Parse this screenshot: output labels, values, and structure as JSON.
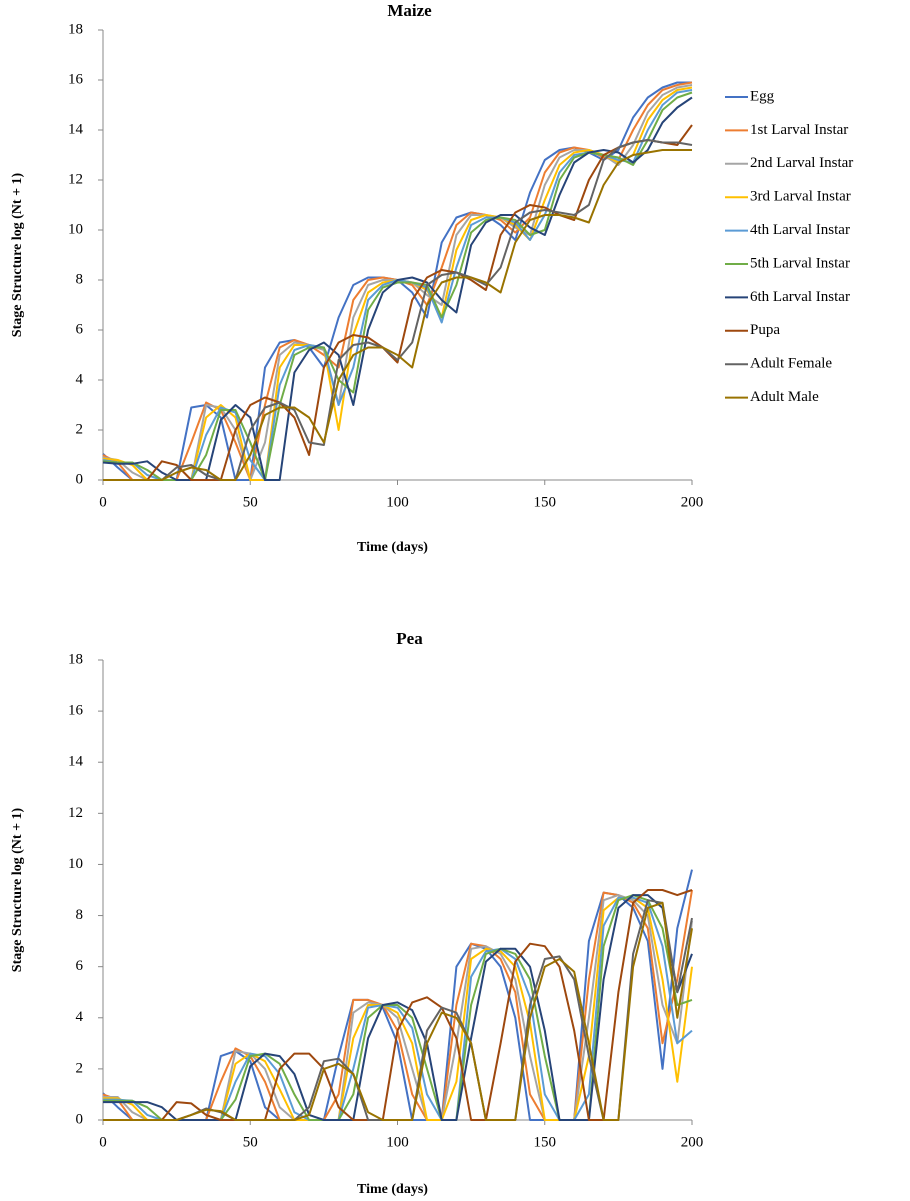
{
  "chart_data": [
    {
      "type": "line",
      "title": "Maize",
      "xlabel": "Time (days)",
      "ylabel": "Stage Structure log (Nt + 1)",
      "xlim": [
        0,
        200
      ],
      "xticks": [
        0,
        50,
        100,
        150,
        200
      ],
      "ylim": [
        0,
        18
      ],
      "yticks": [
        0,
        2,
        4,
        6,
        8,
        10,
        12,
        14,
        16,
        18
      ],
      "legend": "right",
      "x": [
        0,
        5,
        10,
        15,
        20,
        25,
        30,
        35,
        40,
        45,
        50,
        55,
        60,
        65,
        70,
        75,
        80,
        85,
        90,
        95,
        100,
        105,
        110,
        115,
        120,
        125,
        130,
        135,
        140,
        145,
        150,
        155,
        160,
        165,
        170,
        175,
        180,
        185,
        190,
        195,
        200
      ],
      "series": [
        {
          "name": "Egg",
          "color": "#4472c4",
          "values": [
            1.05,
            0.5,
            0,
            0,
            0,
            0,
            2.9,
            3.0,
            2.5,
            0,
            0,
            4.5,
            5.5,
            5.6,
            5.3,
            4.5,
            6.5,
            7.8,
            8.1,
            8.1,
            8.0,
            7.5,
            6.5,
            9.5,
            10.5,
            10.7,
            10.6,
            10.2,
            9.6,
            11.5,
            12.8,
            13.2,
            13.3,
            13.1,
            12.8,
            13.2,
            14.5,
            15.3,
            15.7,
            15.9,
            15.9
          ]
        },
        {
          "name": "1st Larval Instar",
          "color": "#ed7d31",
          "values": [
            1.0,
            0.7,
            0,
            0,
            0,
            0,
            1.5,
            3.1,
            2.8,
            1.5,
            0,
            3.0,
            5.3,
            5.6,
            5.4,
            5.0,
            4.5,
            7.2,
            8.0,
            8.1,
            8.0,
            7.8,
            7.0,
            8.5,
            10.2,
            10.7,
            10.6,
            10.4,
            9.9,
            10.5,
            12.3,
            13.1,
            13.3,
            13.2,
            12.9,
            12.8,
            14.0,
            15.0,
            15.6,
            15.8,
            15.9
          ]
        },
        {
          "name": "2nd Larval Instar",
          "color": "#a5a5a5",
          "values": [
            0.9,
            0.8,
            0.3,
            0,
            0,
            0,
            0,
            3.0,
            2.9,
            2.0,
            0,
            1.5,
            5.0,
            5.5,
            5.4,
            5.2,
            3.0,
            6.5,
            7.8,
            8.0,
            8.0,
            7.9,
            7.4,
            7.0,
            9.8,
            10.6,
            10.6,
            10.5,
            10.1,
            9.8,
            11.8,
            12.9,
            13.2,
            13.2,
            13.0,
            12.6,
            13.4,
            14.7,
            15.4,
            15.7,
            15.8
          ]
        },
        {
          "name": "3rd Larval Instar",
          "color": "#ffc000",
          "values": [
            0.85,
            0.8,
            0.6,
            0,
            0,
            0,
            0,
            2.5,
            3.0,
            2.5,
            0,
            0,
            4.5,
            5.4,
            5.4,
            5.3,
            2.0,
            5.8,
            7.5,
            7.9,
            8.0,
            7.9,
            7.6,
            6.5,
            9.2,
            10.4,
            10.6,
            10.5,
            10.2,
            9.6,
            11.2,
            12.6,
            13.1,
            13.2,
            13.0,
            12.7,
            13.0,
            14.4,
            15.2,
            15.6,
            15.7
          ]
        },
        {
          "name": "4th Larval Instar",
          "color": "#5b9bd5",
          "values": [
            0.8,
            0.7,
            0.7,
            0.2,
            0,
            0,
            0,
            1.8,
            2.9,
            2.7,
            0.8,
            0,
            3.8,
            5.2,
            5.4,
            5.3,
            3.0,
            4.5,
            7.2,
            7.8,
            8.0,
            7.9,
            7.7,
            6.3,
            8.5,
            10.2,
            10.5,
            10.5,
            10.3,
            9.6,
            10.6,
            12.3,
            13.0,
            13.1,
            13.0,
            12.8,
            12.7,
            14.0,
            15.0,
            15.5,
            15.6
          ]
        },
        {
          "name": "5th Larval Instar",
          "color": "#70ad47",
          "values": [
            0.75,
            0.7,
            0.7,
            0.4,
            0,
            0,
            0,
            1.0,
            2.8,
            2.8,
            1.5,
            0,
            3.0,
            5.0,
            5.3,
            5.3,
            4.0,
            3.5,
            6.8,
            7.7,
            7.9,
            7.9,
            7.8,
            6.5,
            7.8,
            9.9,
            10.4,
            10.5,
            10.4,
            9.8,
            10.0,
            12.0,
            12.9,
            13.1,
            13.0,
            12.9,
            12.6,
            13.6,
            14.8,
            15.3,
            15.5
          ]
        },
        {
          "name": "6th Larval Instar",
          "color": "#264478",
          "values": [
            0.7,
            0.65,
            0.65,
            0.75,
            0.3,
            0,
            0,
            0,
            2.4,
            3.0,
            2.5,
            0,
            0,
            4.3,
            5.2,
            5.5,
            5.0,
            3.0,
            6.0,
            7.5,
            8.0,
            8.1,
            7.9,
            7.2,
            6.7,
            9.4,
            10.3,
            10.6,
            10.6,
            10.1,
            9.8,
            11.4,
            12.7,
            13.1,
            13.2,
            13.1,
            12.7,
            13.2,
            14.3,
            14.9,
            15.3
          ]
        },
        {
          "name": "Pupa",
          "color": "#9e480e",
          "values": [
            0,
            0,
            0,
            0,
            0.75,
            0.6,
            0,
            0,
            0,
            2.0,
            3.0,
            3.3,
            3.1,
            2.5,
            1.0,
            4.5,
            5.5,
            5.8,
            5.7,
            5.3,
            4.7,
            7.2,
            8.1,
            8.4,
            8.3,
            8.0,
            7.6,
            9.8,
            10.7,
            11.0,
            10.9,
            10.6,
            10.4,
            12.0,
            13.0,
            13.3,
            13.5,
            13.6,
            13.5,
            13.4,
            14.2
          ]
        },
        {
          "name": "Adult Female",
          "color": "#636363",
          "values": [
            0,
            0,
            0,
            0,
            0,
            0.5,
            0.6,
            0.2,
            0,
            0,
            2.0,
            2.9,
            3.1,
            2.8,
            1.5,
            1.4,
            4.8,
            5.4,
            5.5,
            5.3,
            4.8,
            5.5,
            7.8,
            8.2,
            8.3,
            8.1,
            7.8,
            8.5,
            10.3,
            10.7,
            10.8,
            10.7,
            10.6,
            11.0,
            12.8,
            13.3,
            13.5,
            13.6,
            13.5,
            13.5,
            13.4
          ]
        },
        {
          "name": "Adult Male",
          "color": "#997300",
          "values": [
            0,
            0,
            0,
            0,
            0,
            0.3,
            0.5,
            0.4,
            0,
            0,
            1.0,
            2.6,
            2.9,
            2.9,
            2.5,
            1.5,
            4.0,
            5.0,
            5.3,
            5.3,
            5.0,
            4.5,
            7.0,
            7.9,
            8.1,
            8.1,
            7.9,
            7.5,
            9.5,
            10.4,
            10.6,
            10.6,
            10.5,
            10.3,
            11.8,
            12.7,
            13.0,
            13.1,
            13.2,
            13.2,
            13.2
          ]
        }
      ]
    },
    {
      "type": "line",
      "title": "Pea",
      "xlabel": "Time (days)",
      "ylabel": "Stage Structure log  (Nt + 1)",
      "xlim": [
        0,
        200
      ],
      "xticks": [
        0,
        50,
        100,
        150,
        200
      ],
      "ylim": [
        0,
        18
      ],
      "yticks": [
        0,
        2,
        4,
        6,
        8,
        10,
        12,
        14,
        16,
        18
      ],
      "x": [
        0,
        5,
        10,
        15,
        20,
        25,
        30,
        35,
        40,
        45,
        50,
        55,
        60,
        65,
        70,
        75,
        80,
        85,
        90,
        95,
        100,
        105,
        110,
        115,
        120,
        125,
        130,
        135,
        140,
        145,
        150,
        155,
        160,
        165,
        170,
        175,
        180,
        185,
        190,
        195,
        200
      ],
      "series": [
        {
          "color": "#4472c4",
          "values": [
            1.05,
            0.5,
            0,
            0,
            0,
            0,
            0,
            0,
            2.5,
            2.7,
            2.3,
            0.5,
            0,
            0,
            0,
            0,
            2.5,
            4.7,
            4.7,
            4.4,
            3.0,
            0,
            0,
            0,
            6.0,
            6.9,
            6.7,
            6.0,
            4.0,
            0,
            0,
            0,
            0,
            7.0,
            8.9,
            8.8,
            8.3,
            7.0,
            2.0,
            7.5,
            9.8
          ]
        },
        {
          "color": "#ed7d31",
          "values": [
            1.0,
            0.8,
            0,
            0,
            0,
            0,
            0,
            0,
            1.5,
            2.8,
            2.5,
            1.5,
            0,
            0,
            0,
            0,
            1.0,
            4.7,
            4.7,
            4.5,
            3.5,
            1.0,
            0,
            0,
            4.5,
            6.9,
            6.8,
            6.3,
            5.0,
            1.0,
            0,
            0,
            0,
            5.5,
            8.9,
            8.8,
            8.5,
            7.5,
            3.0,
            5.5,
            9.0
          ]
        },
        {
          "color": "#a5a5a5",
          "values": [
            0.9,
            0.9,
            0.3,
            0,
            0,
            0,
            0,
            0,
            0,
            2.7,
            2.6,
            2.0,
            0.5,
            0,
            0,
            0,
            0,
            4.2,
            4.6,
            4.5,
            4.0,
            2.0,
            0,
            0,
            3.0,
            6.7,
            6.8,
            6.5,
            5.5,
            2.5,
            0,
            0,
            0,
            4.0,
            8.6,
            8.8,
            8.6,
            8.0,
            4.5,
            3.0,
            7.8
          ]
        },
        {
          "color": "#ffc000",
          "values": [
            0.85,
            0.85,
            0.6,
            0,
            0,
            0,
            0,
            0,
            0,
            2.2,
            2.6,
            2.3,
            1.2,
            0,
            0,
            0,
            0,
            3.2,
            4.5,
            4.5,
            4.2,
            3.0,
            0,
            0,
            1.5,
            6.3,
            6.7,
            6.6,
            6.0,
            3.8,
            0,
            0,
            0,
            2.5,
            8.2,
            8.7,
            8.7,
            8.3,
            5.5,
            1.5,
            6.0
          ]
        },
        {
          "color": "#5b9bd5",
          "values": [
            0.8,
            0.8,
            0.75,
            0.2,
            0,
            0,
            0,
            0,
            0,
            1.5,
            2.6,
            2.5,
            1.8,
            0.3,
            0,
            0,
            0,
            2.0,
            4.4,
            4.5,
            4.4,
            3.6,
            1.0,
            0,
            0,
            5.6,
            6.6,
            6.7,
            6.3,
            4.8,
            1.0,
            0,
            0,
            1.0,
            7.6,
            8.7,
            8.7,
            8.5,
            6.8,
            3.0,
            3.5
          ]
        },
        {
          "color": "#70ad47",
          "values": [
            0.75,
            0.75,
            0.75,
            0.5,
            0,
            0,
            0,
            0,
            0,
            0.8,
            2.5,
            2.6,
            2.2,
            1.0,
            0,
            0,
            0,
            1.0,
            4.0,
            4.5,
            4.5,
            4.0,
            2.0,
            0,
            0,
            4.5,
            6.5,
            6.7,
            6.5,
            5.5,
            2.5,
            0,
            0,
            0,
            6.8,
            8.6,
            8.8,
            8.6,
            7.5,
            4.5,
            4.7
          ]
        },
        {
          "color": "#264478",
          "values": [
            0.7,
            0.7,
            0.7,
            0.7,
            0.5,
            0,
            0,
            0,
            0,
            0,
            2.1,
            2.6,
            2.5,
            1.8,
            0.2,
            0,
            0,
            0,
            3.2,
            4.5,
            4.6,
            4.3,
            3.0,
            0,
            0,
            3.2,
            6.2,
            6.7,
            6.7,
            6.0,
            3.5,
            0,
            0,
            0,
            5.5,
            8.3,
            8.8,
            8.8,
            8.3,
            5.0,
            6.5
          ]
        },
        {
          "color": "#9e480e",
          "values": [
            0,
            0,
            0,
            0,
            0,
            0.7,
            0.65,
            0.2,
            0,
            0,
            0,
            0,
            2.0,
            2.6,
            2.6,
            2.0,
            0.5,
            0,
            0,
            0,
            3.5,
            4.6,
            4.8,
            4.4,
            3.2,
            0,
            0,
            3.0,
            6.2,
            6.9,
            6.8,
            6.0,
            3.5,
            0,
            0,
            5.0,
            8.5,
            9.0,
            9.0,
            8.8,
            9.0
          ]
        },
        {
          "color": "#636363",
          "values": [
            0,
            0,
            0,
            0,
            0,
            0,
            0.2,
            0.45,
            0.3,
            0,
            0,
            0,
            0,
            0,
            0.5,
            2.3,
            2.4,
            1.8,
            0,
            0,
            0,
            0,
            3.5,
            4.4,
            4.2,
            3.0,
            0,
            0,
            0,
            4.5,
            6.3,
            6.4,
            5.5,
            2.5,
            0,
            0,
            6.5,
            8.6,
            8.5,
            5.0,
            7.9
          ]
        },
        {
          "color": "#997300",
          "values": [
            0,
            0,
            0,
            0,
            0,
            0,
            0.2,
            0.4,
            0.35,
            0,
            0,
            0,
            0,
            0,
            0.2,
            2.0,
            2.2,
            1.8,
            0.3,
            0,
            0,
            0,
            3.0,
            4.2,
            4.0,
            3.0,
            0,
            0,
            0,
            4.0,
            6.0,
            6.3,
            5.8,
            3.0,
            0,
            0,
            6.0,
            8.3,
            8.5,
            4.0,
            7.5
          ]
        }
      ]
    }
  ]
}
